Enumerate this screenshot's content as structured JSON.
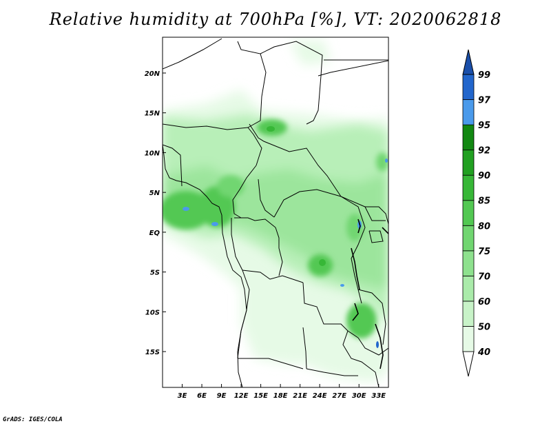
{
  "title": "Relative humidity at 700hPa [%], VT: 2020062818",
  "credit": "GrADS: IGES/COLA",
  "map": {
    "lat_range": [
      -19.5,
      24.5
    ],
    "lon_range": [
      0,
      34.5
    ],
    "lat_ticks": [
      {
        "value": 20,
        "label": "20N"
      },
      {
        "value": 15,
        "label": "15N"
      },
      {
        "value": 10,
        "label": "10N"
      },
      {
        "value": 5,
        "label": "5N"
      },
      {
        "value": 0,
        "label": "EQ"
      },
      {
        "value": -5,
        "label": "5S"
      },
      {
        "value": -10,
        "label": "10S"
      },
      {
        "value": -15,
        "label": "15S"
      }
    ],
    "lon_ticks": [
      {
        "value": 3,
        "label": "3E"
      },
      {
        "value": 6,
        "label": "6E"
      },
      {
        "value": 9,
        "label": "9E"
      },
      {
        "value": 12,
        "label": "12E"
      },
      {
        "value": 15,
        "label": "15E"
      },
      {
        "value": 18,
        "label": "18E"
      },
      {
        "value": 21,
        "label": "21E"
      },
      {
        "value": 24,
        "label": "24E"
      },
      {
        "value": 27,
        "label": "27E"
      },
      {
        "value": 30,
        "label": "30E"
      },
      {
        "value": 33,
        "label": "33E"
      }
    ]
  },
  "colorbar": {
    "levels": [
      "40",
      "50",
      "60",
      "70",
      "75",
      "80",
      "85",
      "90",
      "92",
      "95",
      "97",
      "99"
    ],
    "colors": [
      "#ffffff",
      "#e6fae6",
      "#c8f3c8",
      "#aaebaa",
      "#8ee18e",
      "#71d671",
      "#52c852",
      "#37b737",
      "#21a021",
      "#128812",
      "#4a9aeb",
      "#2266cc",
      "#1a4faa"
    ]
  }
}
